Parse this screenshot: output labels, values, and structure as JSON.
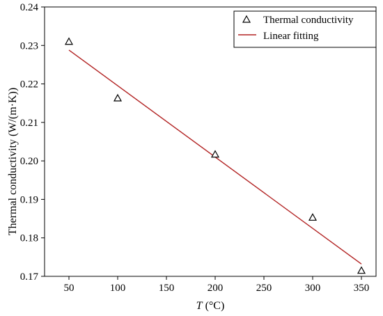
{
  "chart_data": {
    "type": "scatter",
    "title": "",
    "xlabel_var": "T",
    "xlabel_unit": " (°C)",
    "ylabel": "Thermal conductivity (W/(m·K))",
    "xlim": [
      25,
      365
    ],
    "ylim": [
      0.17,
      0.24
    ],
    "x_ticks": [
      50,
      100,
      150,
      200,
      250,
      300,
      350
    ],
    "y_ticks": [
      0.17,
      0.18,
      0.19,
      0.2,
      0.21,
      0.22,
      0.23,
      0.24
    ],
    "y_tick_labels": [
      "0.17",
      "0.18",
      "0.19",
      "0.20",
      "0.21",
      "0.22",
      "0.23",
      "0.24"
    ],
    "grid": false,
    "legend_position": "top-right",
    "series": [
      {
        "name": "Thermal conductivity",
        "kind": "scatter",
        "marker": "open-triangle",
        "color": "#000000",
        "x": [
          50,
          100,
          200,
          300,
          350
        ],
        "y": [
          0.231,
          0.2163,
          0.2017,
          0.1853,
          0.1715
        ]
      },
      {
        "name": "Linear fitting",
        "kind": "line",
        "color": "#b22222",
        "x": [
          50,
          350
        ],
        "y": [
          0.2288,
          0.1732
        ]
      }
    ]
  }
}
